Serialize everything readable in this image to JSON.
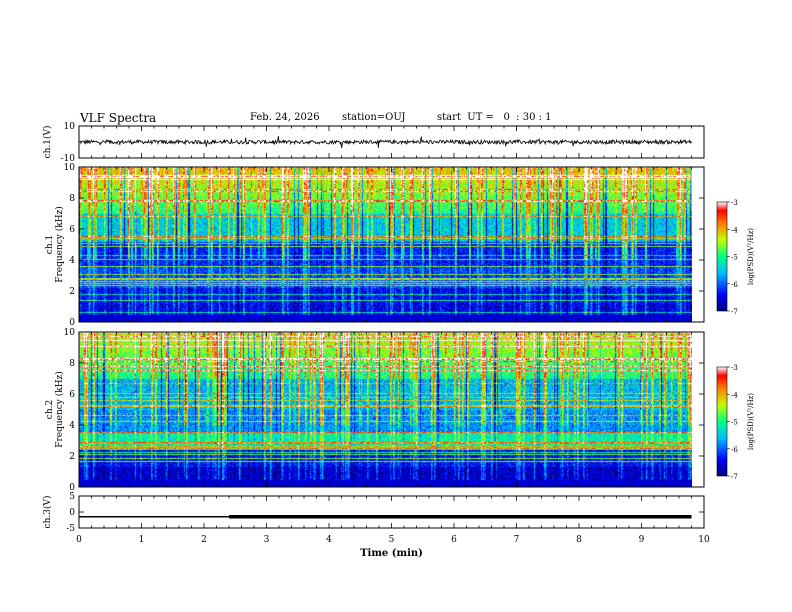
{
  "header": {
    "title": "VLF Spectra",
    "date": "Feb. 24, 2026",
    "station": "station=OUJ",
    "start_ut": "start  UT =   0  : 30 : 1"
  },
  "colors": {
    "background": "#ffffff",
    "axis": "#000000",
    "trace": "#000000"
  },
  "chart_data": [
    {
      "id": "ch1-waveform",
      "type": "line",
      "ylabel": "ch.1(V)",
      "ylim": [
        -10,
        10
      ],
      "yticks": [
        "10",
        "-10"
      ],
      "xlim": [
        0,
        10
      ],
      "description_values": {
        "baseline": 0,
        "noise_amplitude": 1.2,
        "spike_amplitude": 4
      }
    },
    {
      "id": "ch1-spectrogram",
      "type": "heatmap",
      "ylabel": "ch.1\nFrequency (kHz)",
      "ylabel_lines": [
        "ch.1",
        "Frequency (kHz)"
      ],
      "ylim": [
        0,
        10
      ],
      "yticks": [
        "0",
        "2",
        "4",
        "6",
        "8",
        "10"
      ],
      "xlim": [
        0,
        10
      ],
      "colorbar": {
        "label": "log(PSD)(V²/Hz)",
        "range": [
          -7,
          -3
        ],
        "ticks": [
          "-3",
          "-4",
          "-5",
          "-6",
          "-7"
        ]
      }
    },
    {
      "id": "ch2-spectrogram",
      "type": "heatmap",
      "ylabel": "ch.2\nFrequency (kHz)",
      "ylabel_lines": [
        "ch.2",
        "Frequency (kHz)"
      ],
      "ylim": [
        0,
        10
      ],
      "yticks": [
        "0",
        "2",
        "4",
        "6",
        "8",
        "10"
      ],
      "xlim": [
        0,
        10
      ],
      "colorbar": {
        "label": "log(PSD)(V²/Hz)",
        "range": [
          -7,
          -3
        ],
        "ticks": [
          "-3",
          "-4",
          "-5",
          "-6",
          "-7"
        ]
      }
    },
    {
      "id": "ch3-waveform",
      "type": "line",
      "ylabel": "ch.3(V)",
      "ylim": [
        -5,
        5
      ],
      "yticks": [
        "5",
        "0",
        "-5"
      ],
      "xlim": [
        0,
        10
      ],
      "x": [
        0,
        2.4,
        2.4,
        9.8
      ],
      "y": [
        -1.5,
        -1.5,
        -1.5,
        -1.5
      ],
      "thick_from_x": 2.4
    }
  ],
  "xaxis": {
    "label": "Time  (min)",
    "ticks": [
      "0",
      "1",
      "2",
      "3",
      "4",
      "5",
      "6",
      "7",
      "8",
      "9",
      "10"
    ],
    "range": [
      0,
      10
    ],
    "data_end": 9.8
  }
}
